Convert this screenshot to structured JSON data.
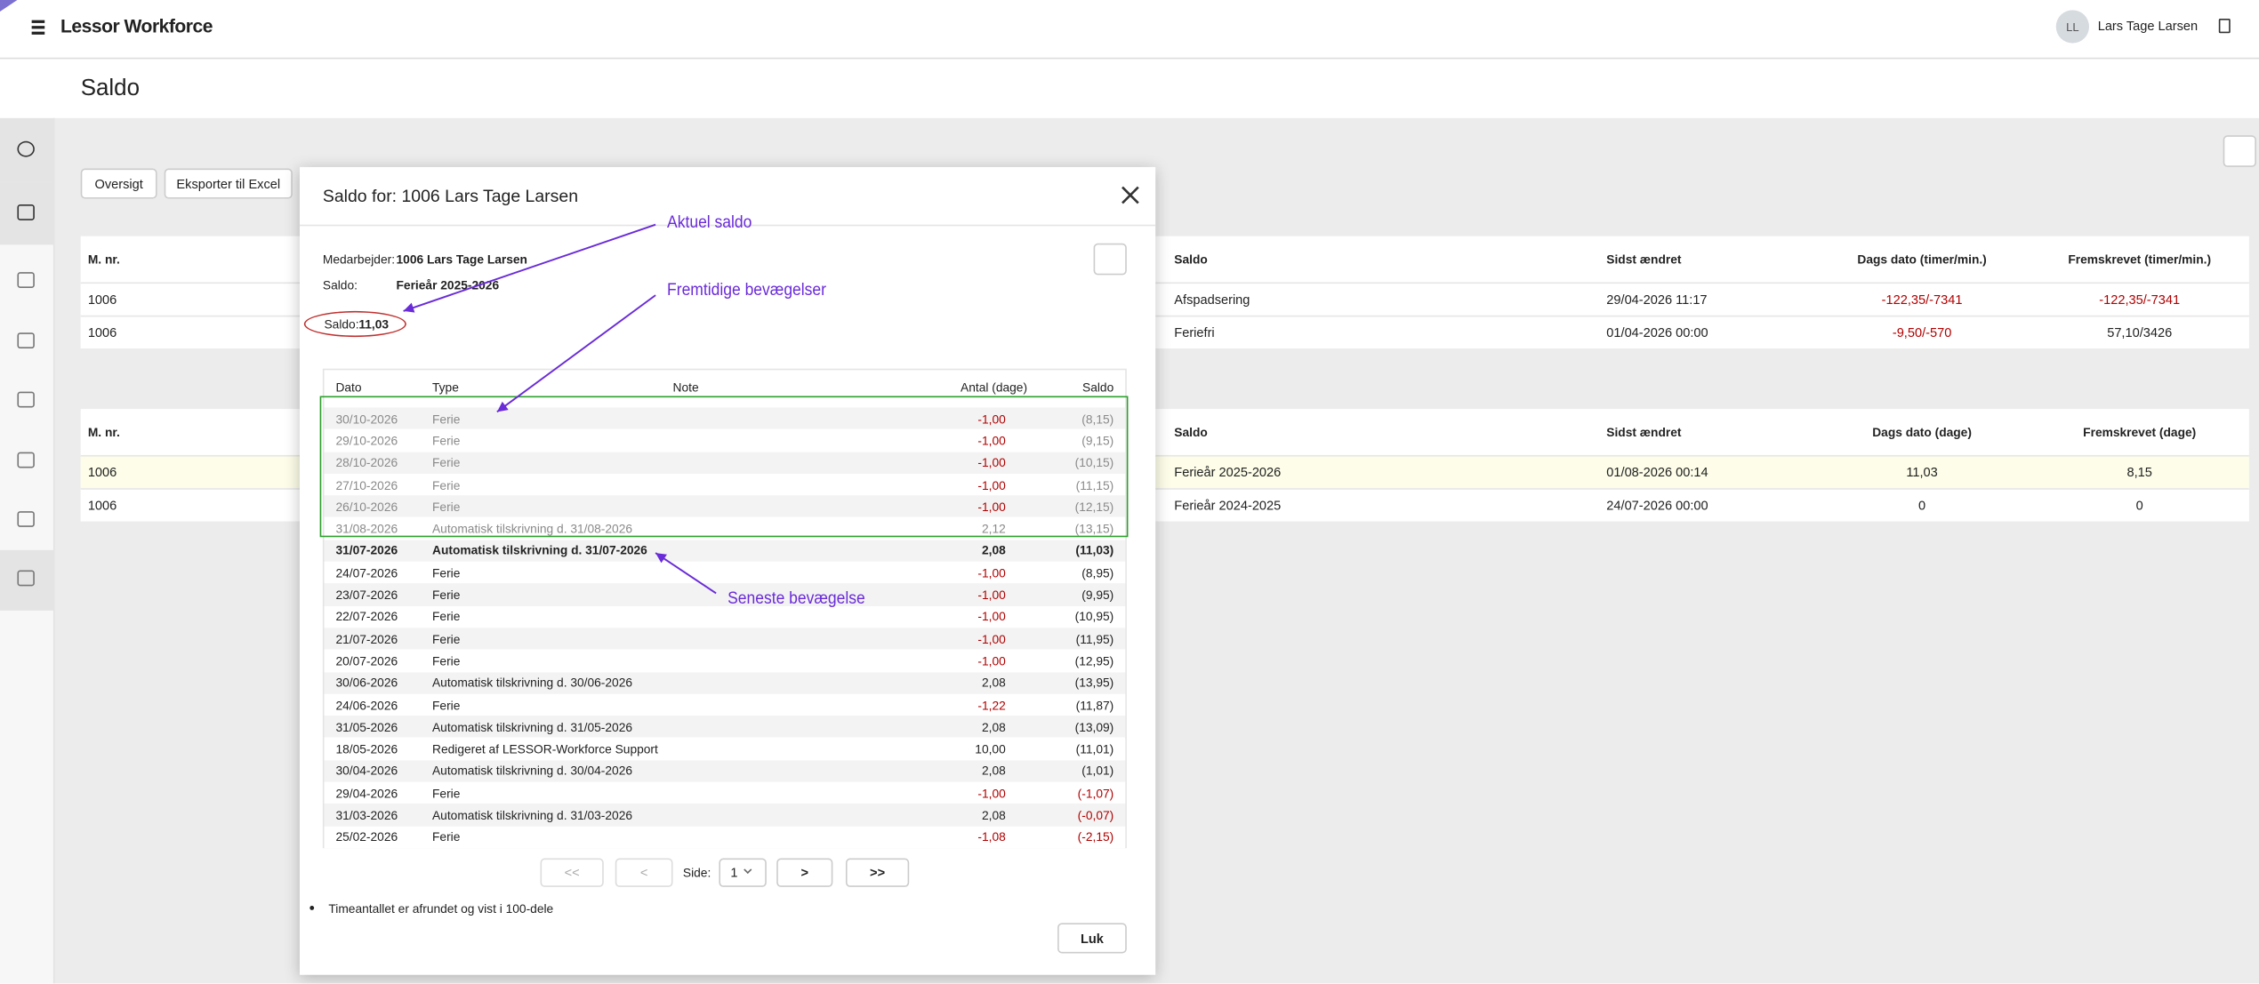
{
  "header": {
    "app_title": "Lessor Workforce",
    "user_initials": "LL",
    "user_name": "Lars Tage Larsen"
  },
  "page_title": "Saldo",
  "buttons": [
    "Oversigt",
    "Eksporter til Excel"
  ],
  "table1": {
    "headers": [
      "M. nr.",
      "Saldo",
      "Sidst ændret",
      "Dags dato (timer/min.)",
      "Fremskrevet (timer/min.)"
    ],
    "rows": [
      [
        "1006",
        "Afspadsering",
        "29/04-2026 11:17",
        "-122,35/-7341",
        "-122,35/-7341"
      ],
      [
        "1006",
        "Feriefri",
        "01/04-2026 00:00",
        "-9,50/-570",
        "57,10/3426"
      ]
    ]
  },
  "table2": {
    "headers": [
      "M. nr.",
      "Saldo",
      "Sidst ændret",
      "Dags dato (dage)",
      "Fremskrevet (dage)"
    ],
    "rows": [
      [
        "1006",
        "Ferieår 2025-2026",
        "01/08-2026 00:14",
        "11,03",
        "8,15"
      ],
      [
        "1006",
        "Ferieår 2024-2025",
        "24/07-2026 00:00",
        "0",
        "0"
      ]
    ]
  },
  "modal": {
    "title": "Saldo for: 1006 Lars Tage Larsen",
    "employee_label": "Medarbejder:",
    "employee_value": "1006 Lars Tage Larsen",
    "saldo_label": "Saldo:",
    "saldo_value": "Ferieår 2025-2026",
    "balance_label": "Saldo:",
    "balance_value": "11,03",
    "columns": [
      "Dato",
      "Type",
      "Note",
      "Antal (dage)",
      "Saldo"
    ],
    "rows": [
      [
        "30/10-2026",
        "Ferie",
        "-1,00",
        "(8,15)"
      ],
      [
        "29/10-2026",
        "Ferie",
        "-1,00",
        "(9,15)"
      ],
      [
        "28/10-2026",
        "Ferie",
        "-1,00",
        "(10,15)"
      ],
      [
        "27/10-2026",
        "Ferie",
        "-1,00",
        "(11,15)"
      ],
      [
        "26/10-2026",
        "Ferie",
        "-1,00",
        "(12,15)"
      ],
      [
        "31/08-2026",
        "Automatisk tilskrivning d. 31/08-2026",
        "2,12",
        "(13,15)"
      ],
      [
        "31/07-2026",
        "Automatisk tilskrivning d. 31/07-2026",
        "2,08",
        "(11,03)"
      ],
      [
        "24/07-2026",
        "Ferie",
        "-1,00",
        "(8,95)"
      ],
      [
        "23/07-2026",
        "Ferie",
        "-1,00",
        "(9,95)"
      ],
      [
        "22/07-2026",
        "Ferie",
        "-1,00",
        "(10,95)"
      ],
      [
        "21/07-2026",
        "Ferie",
        "-1,00",
        "(11,95)"
      ],
      [
        "20/07-2026",
        "Ferie",
        "-1,00",
        "(12,95)"
      ],
      [
        "30/06-2026",
        "Automatisk tilskrivning d. 30/06-2026",
        "2,08",
        "(13,95)"
      ],
      [
        "24/06-2026",
        "Ferie",
        "-1,22",
        "(11,87)"
      ],
      [
        "31/05-2026",
        "Automatisk tilskrivning d. 31/05-2026",
        "2,08",
        "(13,09)"
      ],
      [
        "18/05-2026",
        "Redigeret af LESSOR-Workforce Support",
        "10,00",
        "(11,01)"
      ],
      [
        "30/04-2026",
        "Automatisk tilskrivning d. 30/04-2026",
        "2,08",
        "(1,01)"
      ],
      [
        "29/04-2026",
        "Ferie",
        "-1,00",
        "(-1,07)"
      ],
      [
        "31/03-2026",
        "Automatisk tilskrivning d. 31/03-2026",
        "2,08",
        "(-0,07)"
      ],
      [
        "25/02-2026",
        "Ferie",
        "-1,08",
        "(-2,15)"
      ]
    ],
    "pagination": {
      "first": "<<",
      "prev": "<",
      "page_label": "Side:",
      "page": "1",
      "next": ">",
      "last": ">>"
    },
    "note": "Timeantallet er afrundet og vist i 100-dele",
    "close_button": "Luk"
  },
  "annotations": [
    "Aktuel saldo",
    "Fremtidige bevægelser",
    "Seneste bevægelse"
  ]
}
